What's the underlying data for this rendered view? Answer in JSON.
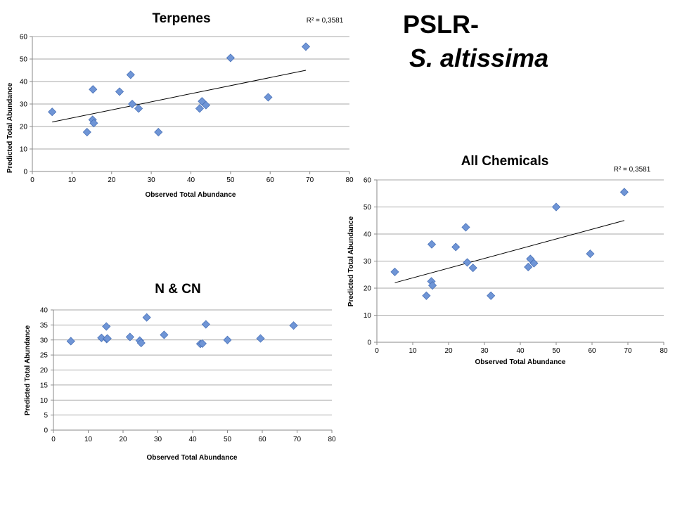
{
  "slide": {
    "title_line1": "PSLR-",
    "title_line2": "S. altissima"
  },
  "chart_data": [
    {
      "type": "scatter",
      "title": "Terpenes",
      "xlabel": "Observed Total Abundance",
      "ylabel": "Predicted Total Abundance",
      "r2_label": "R² = 0,3581",
      "xlim": [
        0,
        80
      ],
      "ylim": [
        0,
        60
      ],
      "xticks": [
        0,
        10,
        20,
        30,
        40,
        50,
        60,
        70,
        80
      ],
      "yticks": [
        0,
        10,
        20,
        30,
        40,
        50,
        60
      ],
      "grid": true,
      "marker_color": "#6f95d6",
      "trendline": [
        [
          5,
          22
        ],
        [
          69,
          45
        ]
      ],
      "points": [
        [
          5,
          26.5
        ],
        [
          13.8,
          17.5
        ],
        [
          15.2,
          23
        ],
        [
          15.3,
          36.5
        ],
        [
          15.5,
          21.5
        ],
        [
          22,
          35.5
        ],
        [
          24.8,
          43
        ],
        [
          25.2,
          30
        ],
        [
          26.8,
          28
        ],
        [
          31.8,
          17.5
        ],
        [
          42.2,
          28
        ],
        [
          42.8,
          31.2
        ],
        [
          43.8,
          29.5
        ],
        [
          50,
          50.5
        ],
        [
          59.5,
          33
        ],
        [
          69,
          55.5
        ]
      ]
    },
    {
      "type": "scatter",
      "title": "All Chemicals",
      "xlabel": "Observed Total Abundance",
      "ylabel": "Predicted Total Abundance",
      "r2_label": "R² = 0,3581",
      "xlim": [
        0,
        80
      ],
      "ylim": [
        0,
        60
      ],
      "xticks": [
        0,
        10,
        20,
        30,
        40,
        50,
        60,
        70,
        80
      ],
      "yticks": [
        0,
        10,
        20,
        30,
        40,
        50,
        60
      ],
      "grid": true,
      "marker_color": "#6f95d6",
      "trendline": [
        [
          5,
          22
        ],
        [
          69,
          45
        ]
      ],
      "points": [
        [
          5,
          26
        ],
        [
          13.8,
          17.2
        ],
        [
          15.2,
          22.5
        ],
        [
          15.3,
          36.2
        ],
        [
          15.5,
          21
        ],
        [
          22,
          35.2
        ],
        [
          24.8,
          42.5
        ],
        [
          25.2,
          29.5
        ],
        [
          26.8,
          27.5
        ],
        [
          31.8,
          17.2
        ],
        [
          42.2,
          27.8
        ],
        [
          42.8,
          30.8
        ],
        [
          43.8,
          29.2
        ],
        [
          50,
          50
        ],
        [
          59.5,
          32.7
        ],
        [
          69,
          55.5
        ]
      ]
    },
    {
      "type": "scatter",
      "title": "N & CN",
      "xlabel": "Observed Total Abundance",
      "ylabel": "Predicted Total Abundance",
      "r2_label": "",
      "xlim": [
        0,
        80
      ],
      "ylim": [
        0,
        40
      ],
      "xticks": [
        0,
        10,
        20,
        30,
        40,
        50,
        60,
        70,
        80
      ],
      "yticks": [
        0,
        5,
        10,
        15,
        20,
        25,
        30,
        35,
        40
      ],
      "grid": true,
      "marker_color": "#6f95d6",
      "trendline": null,
      "points": [
        [
          5,
          29.6
        ],
        [
          13.8,
          30.7
        ],
        [
          15.2,
          34.5
        ],
        [
          15.3,
          30.3
        ],
        [
          15.5,
          30.5
        ],
        [
          22,
          31
        ],
        [
          24.8,
          29.8
        ],
        [
          25.2,
          29
        ],
        [
          26.8,
          37.5
        ],
        [
          31.8,
          31.7
        ],
        [
          42.2,
          28.7
        ],
        [
          42.8,
          28.8
        ],
        [
          43.8,
          35.2
        ],
        [
          50,
          30
        ],
        [
          59.5,
          30.5
        ],
        [
          69,
          34.8
        ]
      ]
    }
  ]
}
